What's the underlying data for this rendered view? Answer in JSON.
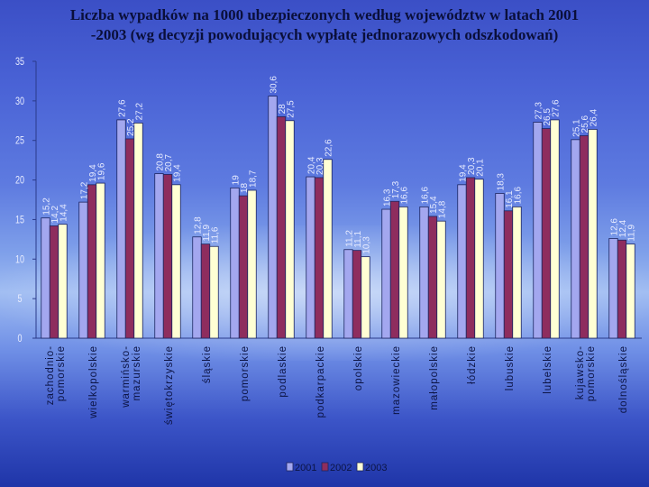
{
  "title_line1": "Liczba wypadków na 1000 ubezpieczonych według województw    w latach 2001",
  "title_line2": "-2003 (wg decyzji powodujących wypłatę jednorazowych odszkodowań)",
  "chart_data": {
    "type": "bar",
    "title": "Liczba wypadków na 1000 ubezpieczonych według województw w latach 2001-2003 (wg decyzji powodujących wypłatę jednorazowych odszkodowań)",
    "categories": [
      [
        "zachodnio-",
        "pomorskie"
      ],
      [
        "wielkopolskie"
      ],
      [
        "warmińsko-",
        "mazurskie"
      ],
      [
        "świętokrzyskie"
      ],
      [
        "śląskie"
      ],
      [
        "pomorskie"
      ],
      [
        "podlaskie"
      ],
      [
        "podkarpackie"
      ],
      [
        "opolskie"
      ],
      [
        "mazowieckie"
      ],
      [
        "małopolskie"
      ],
      [
        "łódzkie"
      ],
      [
        "lubuskie"
      ],
      [
        "lubelskie"
      ],
      [
        "kujawsko-",
        "pomorskie"
      ],
      [
        "dolnośląskie"
      ]
    ],
    "series": [
      {
        "name": "2001",
        "color": "#a3a7ef",
        "values": [
          15.2,
          17.2,
          27.6,
          20.8,
          12.8,
          19,
          30.6,
          20.4,
          11.2,
          16.3,
          16.6,
          19.4,
          18.3,
          27.3,
          25.1,
          12.6
        ]
      },
      {
        "name": "2002",
        "color": "#8e2d5e",
        "values": [
          14.2,
          19.4,
          25.2,
          20.7,
          11.9,
          18,
          28,
          20.3,
          11.1,
          17.3,
          15.4,
          20.3,
          16.1,
          26.5,
          25.6,
          12.4
        ]
      },
      {
        "name": "2003",
        "color": "#ffffd4",
        "values": [
          14.4,
          19.6,
          27.2,
          19.4,
          11.6,
          18.7,
          27.5,
          22.6,
          10.3,
          16.6,
          14.8,
          20.1,
          16.6,
          27.6,
          26.4,
          11.9
        ]
      }
    ],
    "value_labels": [
      [
        "15,2",
        "14,2",
        "14,4"
      ],
      [
        "17,2",
        "19,4",
        "19,6"
      ],
      [
        "27,6",
        "25,2",
        "27,2"
      ],
      [
        "20,8",
        "20,7",
        "19,4"
      ],
      [
        "12,8",
        "11,9",
        "11,6"
      ],
      [
        "19",
        "18",
        "18,7"
      ],
      [
        "30,6",
        "28",
        "27,5"
      ],
      [
        "20,4",
        "20,3",
        "22,6"
      ],
      [
        "11,2",
        "11,1",
        "10,3"
      ],
      [
        "16,3",
        "17,3",
        "16,6"
      ],
      [
        "16,6",
        "15,4",
        "14,8"
      ],
      [
        "19,4",
        "20,3",
        "20,1"
      ],
      [
        "18,3",
        "16,1",
        "16,6"
      ],
      [
        "27,3",
        "26,5",
        "27,6"
      ],
      [
        "25,1",
        "25,6",
        "26,4"
      ],
      [
        "12,6",
        "12,4",
        "11,9"
      ]
    ],
    "yticks": [
      "0",
      "5",
      "10",
      "15",
      "20",
      "25",
      "30",
      "35"
    ],
    "ylim": [
      0,
      35
    ],
    "legend_position": "bottom-center",
    "grid": false
  }
}
